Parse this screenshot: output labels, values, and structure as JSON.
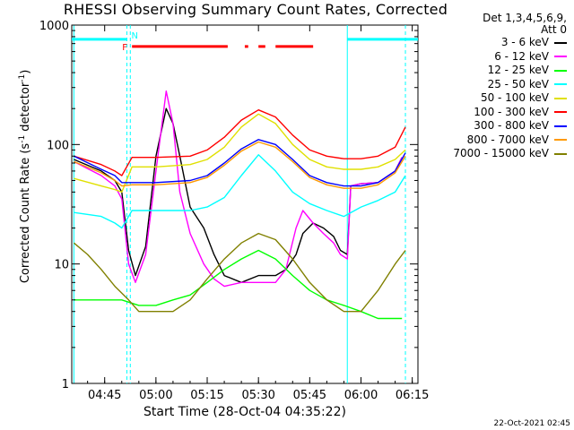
{
  "header": {
    "title": "RHESSI Observing Summary Count Rates, Corrected",
    "det_line1": "Det 1,3,4,5,6,9,",
    "det_line2": "Att 0",
    "timestamp": "22-Oct-2021 02:45"
  },
  "chart_data": {
    "type": "line",
    "title": "RHESSI Observing Summary Count Rates, Corrected",
    "xlabel": "Start Time (28-Oct-04 04:35:22)",
    "ylabel_main": "Corrected Count Rate (s",
    "ylabel_sup1": "-1",
    "ylabel_mid": " detector",
    "ylabel_sup2": "-1",
    "ylabel_end": ")",
    "yscale": "log",
    "ylim": [
      1,
      1000
    ],
    "xlim": [
      "04:35:22",
      "06:16:40"
    ],
    "xticks": [
      "04:45",
      "05:00",
      "05:15",
      "05:30",
      "05:45",
      "06:00",
      "06:15"
    ],
    "yticks": [
      "1",
      "10",
      "100",
      "1000"
    ],
    "grid": false,
    "legend_position": "right",
    "flag_labels": {
      "F": "F",
      "N": "N"
    },
    "series": [
      {
        "name": "3 - 6 keV",
        "color": "#000000",
        "points": [
          [
            "04:36",
            75
          ],
          [
            "04:44",
            60
          ],
          [
            "04:48",
            50
          ],
          [
            "04:50",
            40
          ],
          [
            "04:52",
            13
          ],
          [
            "04:54",
            8
          ],
          [
            "04:57",
            14
          ],
          [
            "05:00",
            80
          ],
          [
            "05:03",
            200
          ],
          [
            "05:05",
            150
          ],
          [
            "05:07",
            80
          ],
          [
            "05:10",
            30
          ],
          [
            "05:14",
            20
          ],
          [
            "05:17",
            12
          ],
          [
            "05:20",
            8
          ],
          [
            "05:25",
            7
          ],
          [
            "05:30",
            8
          ],
          [
            "05:35",
            8
          ],
          [
            "05:38",
            9
          ],
          [
            "05:41",
            12
          ],
          [
            "05:43",
            18
          ],
          [
            "05:46",
            22
          ],
          [
            "05:49",
            20
          ],
          [
            "05:52",
            17
          ],
          [
            "05:54",
            13
          ],
          [
            "05:56",
            12
          ],
          [
            "05:57",
            45
          ],
          [
            "06:00",
            47
          ],
          [
            "06:05",
            48
          ],
          [
            "06:10",
            60
          ],
          [
            "06:12",
            78
          ]
        ]
      },
      {
        "name": "6 - 12 keV",
        "color": "#ff00ff",
        "points": [
          [
            "04:36",
            72
          ],
          [
            "04:44",
            55
          ],
          [
            "04:48",
            45
          ],
          [
            "04:50",
            35
          ],
          [
            "04:52",
            10
          ],
          [
            "04:54",
            7
          ],
          [
            "04:57",
            12
          ],
          [
            "05:00",
            60
          ],
          [
            "05:03",
            280
          ],
          [
            "05:05",
            150
          ],
          [
            "05:07",
            40
          ],
          [
            "05:10",
            18
          ],
          [
            "05:14",
            10
          ],
          [
            "05:17",
            7.5
          ],
          [
            "05:20",
            6.5
          ],
          [
            "05:25",
            7
          ],
          [
            "05:30",
            7
          ],
          [
            "05:35",
            7
          ],
          [
            "05:38",
            9
          ],
          [
            "05:41",
            20
          ],
          [
            "05:43",
            28
          ],
          [
            "05:46",
            22
          ],
          [
            "05:49",
            18
          ],
          [
            "05:52",
            15
          ],
          [
            "05:54",
            12
          ],
          [
            "05:56",
            11
          ],
          [
            "05:57",
            45
          ],
          [
            "06:00",
            47
          ],
          [
            "06:05",
            48
          ],
          [
            "06:10",
            60
          ],
          [
            "06:12",
            78
          ]
        ]
      },
      {
        "name": "12 - 25 keV",
        "color": "#00ff00",
        "points": [
          [
            "04:36",
            5
          ],
          [
            "04:50",
            5
          ],
          [
            "04:55",
            4.5
          ],
          [
            "05:00",
            4.5
          ],
          [
            "05:05",
            5
          ],
          [
            "05:10",
            5.5
          ],
          [
            "05:15",
            7
          ],
          [
            "05:20",
            9
          ],
          [
            "05:25",
            11
          ],
          [
            "05:30",
            13
          ],
          [
            "05:35",
            11
          ],
          [
            "05:40",
            8
          ],
          [
            "05:45",
            6
          ],
          [
            "05:50",
            5
          ],
          [
            "05:55",
            4.5
          ],
          [
            "06:00",
            4
          ],
          [
            "06:05",
            3.5
          ],
          [
            "06:12",
            3.5
          ]
        ]
      },
      {
        "name": "25 - 50 keV",
        "color": "#00ffff",
        "points": [
          [
            "04:36",
            27
          ],
          [
            "04:44",
            25
          ],
          [
            "04:48",
            22
          ],
          [
            "04:50",
            20
          ],
          [
            "04:53",
            28
          ],
          [
            "05:00",
            28
          ],
          [
            "05:10",
            28
          ],
          [
            "05:15",
            30
          ],
          [
            "05:20",
            36
          ],
          [
            "05:25",
            55
          ],
          [
            "05:30",
            82
          ],
          [
            "05:35",
            60
          ],
          [
            "05:40",
            40
          ],
          [
            "05:45",
            32
          ],
          [
            "05:50",
            28
          ],
          [
            "05:55",
            25
          ],
          [
            "06:00",
            30
          ],
          [
            "06:05",
            34
          ],
          [
            "06:10",
            40
          ],
          [
            "06:13",
            55
          ]
        ]
      },
      {
        "name": "50 - 100 keV",
        "color": "#e0e000",
        "points": [
          [
            "04:36",
            52
          ],
          [
            "04:44",
            45
          ],
          [
            "04:48",
            42
          ],
          [
            "04:50",
            40
          ],
          [
            "04:53",
            65
          ],
          [
            "05:00",
            65
          ],
          [
            "05:10",
            68
          ],
          [
            "05:15",
            75
          ],
          [
            "05:20",
            95
          ],
          [
            "05:25",
            140
          ],
          [
            "05:30",
            180
          ],
          [
            "05:35",
            150
          ],
          [
            "05:40",
            100
          ],
          [
            "05:45",
            75
          ],
          [
            "05:50",
            65
          ],
          [
            "05:55",
            62
          ],
          [
            "06:00",
            62
          ],
          [
            "06:05",
            65
          ],
          [
            "06:10",
            75
          ],
          [
            "06:13",
            90
          ]
        ]
      },
      {
        "name": "100 - 300 keV",
        "color": "#ff0000",
        "points": [
          [
            "04:36",
            80
          ],
          [
            "04:44",
            68
          ],
          [
            "04:48",
            60
          ],
          [
            "04:50",
            55
          ],
          [
            "04:53",
            78
          ],
          [
            "05:00",
            78
          ],
          [
            "05:10",
            80
          ],
          [
            "05:15",
            90
          ],
          [
            "05:20",
            115
          ],
          [
            "05:25",
            160
          ],
          [
            "05:30",
            195
          ],
          [
            "05:35",
            170
          ],
          [
            "05:40",
            120
          ],
          [
            "05:45",
            90
          ],
          [
            "05:50",
            80
          ],
          [
            "05:55",
            76
          ],
          [
            "06:00",
            76
          ],
          [
            "06:05",
            80
          ],
          [
            "06:10",
            95
          ],
          [
            "06:13",
            140
          ]
        ]
      },
      {
        "name": "300 - 800 keV",
        "color": "#0000ff",
        "points": [
          [
            "04:36",
            80
          ],
          [
            "04:44",
            62
          ],
          [
            "04:48",
            55
          ],
          [
            "04:50",
            48
          ],
          [
            "04:53",
            48
          ],
          [
            "05:00",
            48
          ],
          [
            "05:10",
            50
          ],
          [
            "05:15",
            55
          ],
          [
            "05:20",
            70
          ],
          [
            "05:25",
            92
          ],
          [
            "05:30",
            110
          ],
          [
            "05:35",
            100
          ],
          [
            "05:40",
            75
          ],
          [
            "05:45",
            55
          ],
          [
            "05:50",
            48
          ],
          [
            "05:55",
            45
          ],
          [
            "06:00",
            45
          ],
          [
            "06:05",
            48
          ],
          [
            "06:10",
            60
          ],
          [
            "06:13",
            85
          ]
        ]
      },
      {
        "name": "800 - 7000 keV",
        "color": "#ff9900",
        "points": [
          [
            "04:36",
            72
          ],
          [
            "04:44",
            58
          ],
          [
            "04:48",
            50
          ],
          [
            "04:50",
            45
          ],
          [
            "04:53",
            46
          ],
          [
            "05:00",
            46
          ],
          [
            "05:10",
            48
          ],
          [
            "05:15",
            53
          ],
          [
            "05:20",
            67
          ],
          [
            "05:25",
            88
          ],
          [
            "05:30",
            105
          ],
          [
            "05:35",
            95
          ],
          [
            "05:40",
            72
          ],
          [
            "05:45",
            53
          ],
          [
            "05:50",
            46
          ],
          [
            "05:55",
            43
          ],
          [
            "06:00",
            43
          ],
          [
            "06:05",
            46
          ],
          [
            "06:10",
            58
          ],
          [
            "06:13",
            80
          ]
        ]
      },
      {
        "name": "7000 - 15000 keV",
        "color": "#808000",
        "points": [
          [
            "04:36",
            15
          ],
          [
            "04:40",
            12
          ],
          [
            "04:44",
            9
          ],
          [
            "04:48",
            6.5
          ],
          [
            "04:52",
            5
          ],
          [
            "04:55",
            4
          ],
          [
            "05:00",
            4
          ],
          [
            "05:05",
            4
          ],
          [
            "05:10",
            5
          ],
          [
            "05:15",
            7.5
          ],
          [
            "05:20",
            11
          ],
          [
            "05:25",
            15
          ],
          [
            "05:30",
            18
          ],
          [
            "05:35",
            16
          ],
          [
            "05:40",
            11
          ],
          [
            "05:45",
            7
          ],
          [
            "05:50",
            5
          ],
          [
            "05:55",
            4
          ],
          [
            "06:00",
            4
          ],
          [
            "06:05",
            6
          ],
          [
            "06:10",
            10
          ],
          [
            "06:13",
            13
          ]
        ]
      }
    ],
    "flags": {
      "level": 760,
      "color": "#ff0000",
      "segments": [
        [
          "04:53",
          "05:21"
        ],
        [
          "05:26",
          "05:27"
        ],
        [
          "05:30",
          "05:32"
        ],
        [
          "05:35",
          "05:46"
        ]
      ]
    },
    "saa": {
      "level": 760,
      "color": "#00ffff",
      "segments": [
        [
          "04:35:22",
          "04:51:30"
        ],
        [
          "05:56",
          "06:16:40"
        ]
      ]
    },
    "vlines": [
      {
        "time": "04:51:30",
        "color": "#00ffff",
        "style": "dashed"
      },
      {
        "time": "04:52:30",
        "color": "#00ffff",
        "style": "dashed"
      },
      {
        "time": "05:56",
        "color": "#00ffff",
        "style": "solid"
      },
      {
        "time": "06:13",
        "color": "#00ffff",
        "style": "dashed"
      },
      {
        "time": "04:36",
        "color": "#00ffff",
        "style": "solid"
      }
    ]
  }
}
